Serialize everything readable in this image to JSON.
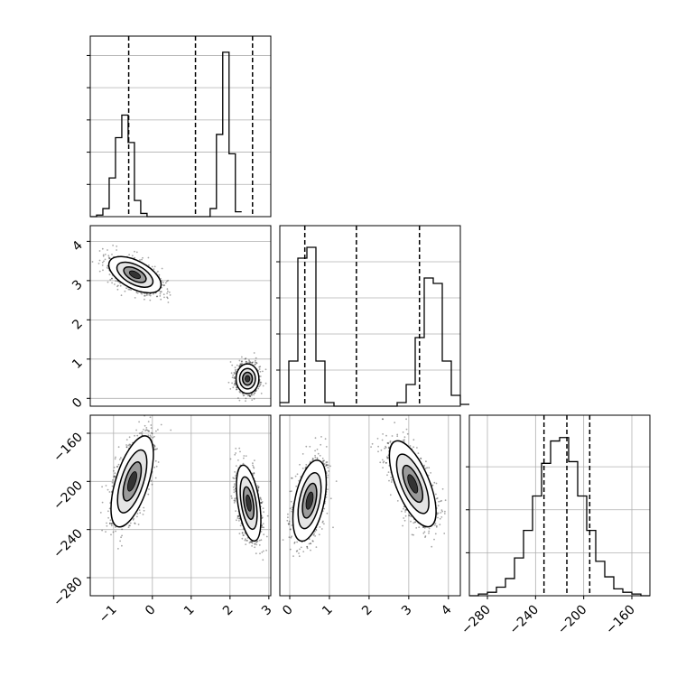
{
  "chart_data": [
    {
      "type": "histogram",
      "panel": "p0",
      "xlim": [
        -1.6,
        3.05
      ],
      "ymax": 1.12,
      "bins": {
        "start": -1.6,
        "width": 0.1625
      },
      "counts": [
        0.0,
        0.01,
        0.05,
        0.24,
        0.49,
        0.63,
        0.46,
        0.1,
        0.02,
        0.0,
        0.0,
        0.0,
        0.0,
        0.0,
        0.0,
        0.0,
        0.0,
        0.0,
        0.0,
        0.05,
        0.51,
        1.02,
        0.39,
        0.03
      ],
      "quantiles": [
        -0.61,
        1.11,
        2.58
      ],
      "xticks": [],
      "yticks": [
        0.2,
        0.4,
        0.6,
        0.8,
        1.0
      ]
    },
    {
      "type": "scatter-contour",
      "panel": "p10",
      "xlim": [
        -1.6,
        3.05
      ],
      "ylim": [
        -0.2,
        4.4
      ],
      "yticks": [
        0,
        1,
        2,
        3,
        4
      ],
      "ytick_labels": [
        "0",
        "1",
        "2",
        "3",
        "4"
      ],
      "clusters": [
        {
          "mean": [
            -0.45,
            3.15
          ],
          "sd": [
            0.32,
            0.22
          ],
          "corr": -0.55
        },
        {
          "mean": [
            2.45,
            0.5
          ],
          "sd": [
            0.14,
            0.18
          ],
          "corr": 0.0
        }
      ]
    },
    {
      "type": "histogram",
      "panel": "p11",
      "xlim": [
        -0.25,
        4.3
      ],
      "ymax": 1.0,
      "bins": {
        "start": -0.25,
        "width": 0.2275
      },
      "counts": [
        0.02,
        0.25,
        0.82,
        0.88,
        0.25,
        0.02,
        0.0,
        0.0,
        0.0,
        0.0,
        0.0,
        0.0,
        0.0,
        0.02,
        0.12,
        0.38,
        0.71,
        0.68,
        0.25,
        0.06,
        0.01
      ],
      "quantiles": [
        0.38,
        1.68,
        3.27
      ],
      "xticks": [],
      "yticks": [
        0.2,
        0.4,
        0.6,
        0.8
      ]
    },
    {
      "type": "scatter-contour",
      "panel": "p20",
      "xlim": [
        -1.6,
        3.05
      ],
      "ylim": [
        -295,
        -145
      ],
      "xticks": [
        -1,
        0,
        1,
        2,
        3
      ],
      "xtick_labels": [
        "−1",
        "0",
        "1",
        "2",
        "3"
      ],
      "yticks": [
        -160,
        -200,
        -240,
        -280
      ],
      "ytick_labels": [
        "−160",
        "−200",
        "−240",
        "−280"
      ],
      "clusters": [
        {
          "mean": [
            -0.52,
            -200
          ],
          "sd": [
            0.26,
            18
          ],
          "corr": 0.6
        },
        {
          "mean": [
            2.48,
            -218
          ],
          "sd": [
            0.15,
            15
          ],
          "corr": -0.45
        }
      ]
    },
    {
      "type": "scatter-contour",
      "panel": "p21",
      "xlim": [
        -0.25,
        4.3
      ],
      "ylim": [
        -295,
        -145
      ],
      "xticks": [
        0,
        1,
        2,
        3,
        4
      ],
      "xtick_labels": [
        "0",
        "1",
        "2",
        "3",
        "4"
      ],
      "yticks": [],
      "clusters": [
        {
          "mean": [
            0.5,
            -216
          ],
          "sd": [
            0.2,
            16
          ],
          "corr": 0.45
        },
        {
          "mean": [
            3.1,
            -202
          ],
          "sd": [
            0.28,
            17
          ],
          "corr": -0.65
        }
      ]
    },
    {
      "type": "histogram",
      "panel": "p22",
      "xlim": [
        -295,
        -145
      ],
      "ymax": 1.05,
      "bins": {
        "start": -295,
        "width": 7.5
      },
      "counts": [
        0.0,
        0.01,
        0.02,
        0.05,
        0.1,
        0.22,
        0.38,
        0.58,
        0.77,
        0.9,
        0.92,
        0.78,
        0.58,
        0.38,
        0.2,
        0.11,
        0.04,
        0.02,
        0.01,
        0.0
      ],
      "quantiles": [
        -233,
        -214,
        -195
      ],
      "xticks": [
        -280,
        -240,
        -200,
        -160
      ],
      "xtick_labels": [
        "−280",
        "−240",
        "−200",
        "−160"
      ],
      "yticks": [
        0.25,
        0.5,
        0.75
      ]
    }
  ]
}
